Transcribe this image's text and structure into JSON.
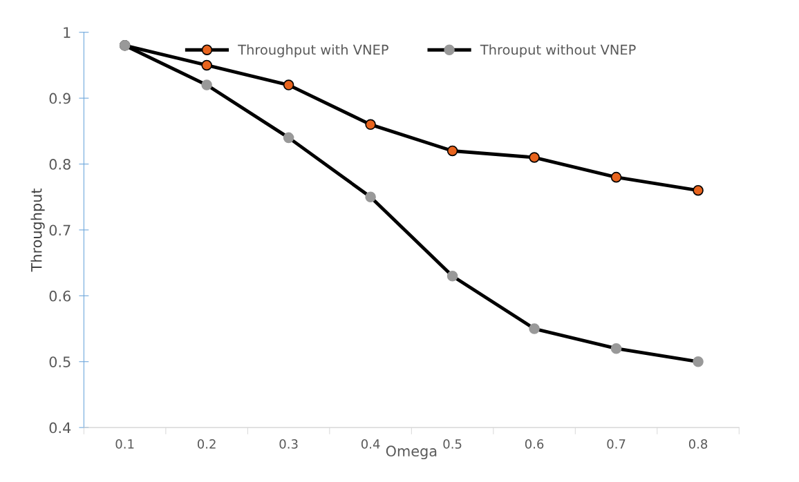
{
  "chart_data": {
    "type": "line",
    "xlabel": "Omega",
    "ylabel": "Throughput",
    "categories": [
      "0.1",
      "0.2",
      "0.3",
      "0.4",
      "0.5",
      "0.6",
      "0.7",
      "0.8"
    ],
    "series": [
      {
        "name": "Throughput with VNEP",
        "color": "#e8641e",
        "values": [
          0.98,
          0.95,
          0.92,
          0.86,
          0.82,
          0.81,
          0.78,
          0.76
        ]
      },
      {
        "name": "Throuput without VNEP",
        "color": "#999999",
        "values": [
          0.98,
          0.92,
          0.84,
          0.75,
          0.63,
          0.55,
          0.52,
          0.5
        ]
      }
    ],
    "ylim": [
      0.4,
      1
    ],
    "yticks": [
      0.4,
      0.5,
      0.6,
      0.7,
      0.8,
      0.9,
      {
        "value": 1,
        "label": "1"
      }
    ],
    "grid": false,
    "legend": "top",
    "marker": "circle",
    "line_style": "solid"
  }
}
